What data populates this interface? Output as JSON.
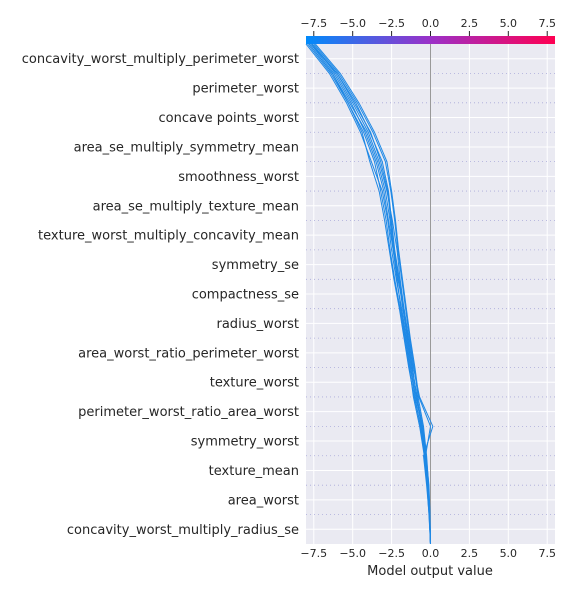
{
  "chart_data": {
    "type": "line",
    "subtype": "shap-decision-plot",
    "xlabel": "Model output value",
    "xlim": [
      -8.0,
      8.0
    ],
    "xticks": [
      -7.5,
      -5.0,
      -2.5,
      0.0,
      2.5,
      5.0,
      7.5
    ],
    "xtick_labels": [
      "−7.5",
      "−5.0",
      "−2.5",
      "0.0",
      "2.5",
      "5.0",
      "7.5"
    ],
    "base_value": 0.0,
    "colorbar": {
      "position": "top",
      "low_color": "#008bfb",
      "high_color": "#ff0052"
    },
    "features_top_to_bottom": [
      "concavity_worst_multiply_perimeter_worst",
      "perimeter_worst",
      "concave points_worst",
      "area_se_multiply_symmetry_mean",
      "smoothness_worst",
      "area_se_multiply_texture_mean",
      "texture_worst_multiply_concavity_mean",
      "symmetry_se",
      "compactness_se",
      "radius_worst",
      "area_worst_ratio_perimeter_worst",
      "texture_worst",
      "perimeter_worst_ratio_area_worst",
      "symmetry_worst",
      "texture_mean",
      "area_worst",
      "concavity_worst_multiply_radius_se"
    ],
    "series_note": "Cumulative model output read from bottom (base value) to top (final prediction). Each series lists values at the 18 row boundaries from bottom to top.",
    "series": [
      {
        "values": [
          0.0,
          -0.05,
          -0.15,
          -0.3,
          -0.6,
          -0.85,
          -1.2,
          -1.5,
          -1.75,
          -2.0,
          -2.3,
          -2.5,
          -2.7,
          -3.1,
          -3.9,
          -4.8,
          -6.0,
          -7.7
        ]
      },
      {
        "values": [
          0.0,
          -0.08,
          -0.2,
          -0.35,
          -0.55,
          -0.9,
          -1.15,
          -1.45,
          -1.7,
          -1.95,
          -2.15,
          -2.45,
          -2.8,
          -3.3,
          -4.0,
          -5.0,
          -6.1,
          -7.6
        ]
      },
      {
        "values": [
          0.0,
          -0.06,
          -0.18,
          -0.35,
          -0.65,
          -1.0,
          -1.3,
          -1.6,
          -1.9,
          -2.15,
          -2.4,
          -2.6,
          -2.9,
          -3.4,
          -4.1,
          -5.2,
          -6.3,
          -7.8
        ]
      },
      {
        "values": [
          0.0,
          -0.1,
          -0.22,
          -0.4,
          -0.7,
          -1.1,
          -1.35,
          -1.65,
          -1.95,
          -2.3,
          -2.6,
          -2.85,
          -3.2,
          -3.6,
          -4.3,
          -5.3,
          -6.4,
          -7.9
        ]
      },
      {
        "values": [
          0.0,
          -0.04,
          -0.12,
          -0.25,
          -0.45,
          -0.8,
          -1.05,
          -1.35,
          -1.6,
          -1.85,
          -2.1,
          -2.3,
          -2.55,
          -2.9,
          -3.7,
          -4.7,
          -5.9,
          -7.5
        ]
      },
      {
        "values": [
          0.0,
          -0.07,
          -0.16,
          -0.32,
          0.0,
          -0.75,
          -1.0,
          -1.3,
          -1.55,
          -1.8,
          -2.05,
          -2.25,
          -2.5,
          -2.8,
          -3.6,
          -4.6,
          -5.8,
          -7.4
        ]
      },
      {
        "values": [
          0.0,
          -0.09,
          -0.25,
          -0.45,
          0.15,
          -0.7,
          -1.1,
          -1.4,
          -1.7,
          -2.1,
          -2.4,
          -2.7,
          -3.0,
          -3.5,
          -4.2,
          -5.1,
          -6.2,
          -7.7
        ]
      },
      {
        "values": [
          0.0,
          -0.05,
          -0.2,
          -0.3,
          -0.55,
          -0.95,
          -1.25,
          -1.55,
          -1.85,
          -2.2,
          -2.5,
          -2.75,
          -3.1,
          -3.8,
          -4.5,
          -5.4,
          -6.5,
          -8.0
        ]
      },
      {
        "values": [
          0.0,
          -0.03,
          -0.1,
          -0.28,
          -0.5,
          -0.88,
          -1.18,
          -1.48,
          -1.78,
          -2.05,
          -2.35,
          -2.55,
          -2.75,
          -3.2,
          -3.85,
          -4.9,
          -6.0,
          -7.6
        ]
      },
      {
        "values": [
          0.0,
          -0.06,
          -0.14,
          -0.38,
          -0.62,
          -1.05,
          -1.4,
          -1.7,
          -2.0,
          -2.35,
          -2.65,
          -2.95,
          -3.3,
          -3.9,
          -4.4,
          -5.3,
          -6.3,
          -7.8
        ]
      }
    ]
  }
}
